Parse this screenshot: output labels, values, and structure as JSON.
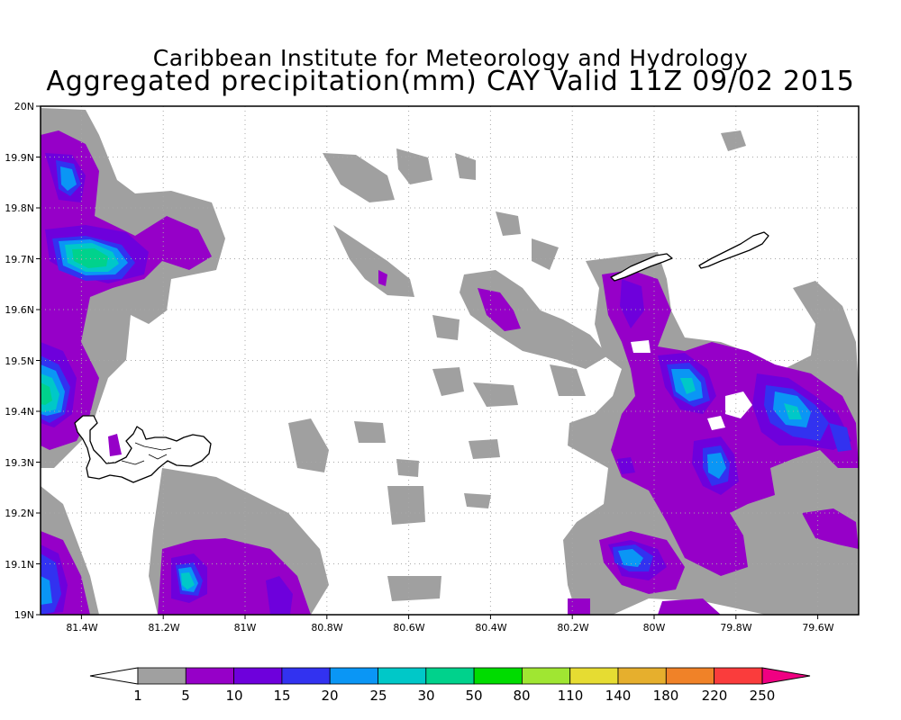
{
  "title": {
    "line1": "Caribbean Institute for Meteorology and Hydrology",
    "line2": "Aggregated precipitation(mm) CAY Valid 11Z 09/02 2015"
  },
  "map": {
    "lat_range": [
      19.0,
      20.0
    ],
    "lon_range": [
      -81.5,
      -79.5
    ],
    "grid": true,
    "lat_ticks": [
      {
        "value": 20.0,
        "label": "20N"
      },
      {
        "value": 19.9,
        "label": "19.9N"
      },
      {
        "value": 19.8,
        "label": "19.8N"
      },
      {
        "value": 19.7,
        "label": "19.7N"
      },
      {
        "value": 19.6,
        "label": "19.6N"
      },
      {
        "value": 19.5,
        "label": "19.5N"
      },
      {
        "value": 19.4,
        "label": "19.4N"
      },
      {
        "value": 19.3,
        "label": "19.3N"
      },
      {
        "value": 19.2,
        "label": "19.2N"
      },
      {
        "value": 19.1,
        "label": "19.1N"
      },
      {
        "value": 19.0,
        "label": "19N"
      }
    ],
    "lon_ticks": [
      {
        "value": -81.4,
        "label": "81.4W"
      },
      {
        "value": -81.2,
        "label": "81.2W"
      },
      {
        "value": -81.0,
        "label": "81W"
      },
      {
        "value": -80.8,
        "label": "80.8W"
      },
      {
        "value": -80.6,
        "label": "80.6W"
      },
      {
        "value": -80.4,
        "label": "80.4W"
      },
      {
        "value": -80.2,
        "label": "80.2W"
      },
      {
        "value": -80.0,
        "label": "80W"
      },
      {
        "value": -79.8,
        "label": "79.8W"
      },
      {
        "value": -79.6,
        "label": "79.6W"
      }
    ],
    "islands": [
      "Grand Cayman",
      "Little Cayman",
      "Cayman Brac"
    ]
  },
  "colorbar": {
    "levels": [
      "1",
      "5",
      "10",
      "15",
      "20",
      "25",
      "30",
      "50",
      "80",
      "110",
      "140",
      "180",
      "220",
      "250"
    ],
    "colors": [
      "#a0a0a0",
      "#9600c8",
      "#6e00dc",
      "#3232f0",
      "#0a96f5",
      "#00c8c8",
      "#00d28c",
      "#00dc00",
      "#a0e632",
      "#e6dc32",
      "#e6af2d",
      "#f08228",
      "#fa3c3c",
      "#f00082"
    ],
    "below_color": "#ffffff"
  },
  "precip_palette": {
    "gray": "#a0a0a0",
    "purple": "#9600c8",
    "violet": "#6e00dc",
    "blue": "#3232f0",
    "sky": "#0a96f5",
    "cyan": "#00c8c8",
    "teal": "#00d28c"
  }
}
